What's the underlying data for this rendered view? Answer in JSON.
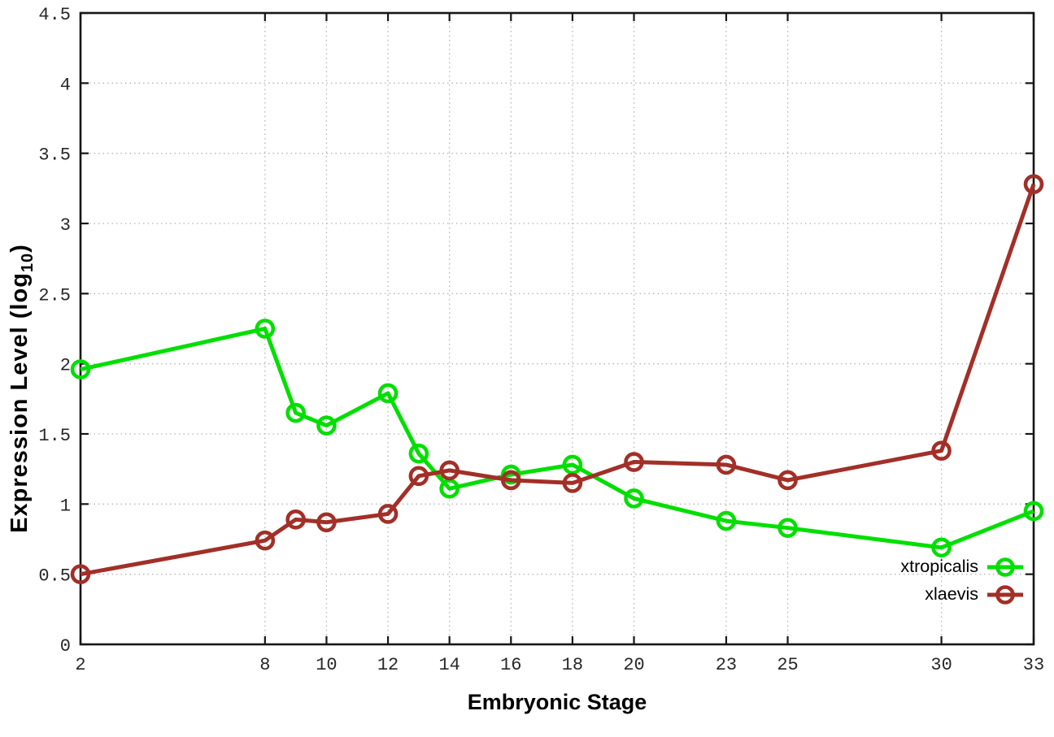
{
  "chart_data": {
    "type": "line",
    "title": "",
    "xlabel": "Embryonic Stage",
    "ylabel": "Expression Level (log10)",
    "ylabel_main": "Expression Level (log",
    "ylabel_sub": "10",
    "ylabel_close": ")",
    "x": [
      2,
      8,
      9,
      10,
      12,
      13,
      14,
      16,
      18,
      20,
      23,
      25,
      30,
      33
    ],
    "xlim": [
      2,
      33
    ],
    "ylim": [
      0,
      4.5
    ],
    "xticks": [
      2,
      8,
      10,
      12,
      14,
      16,
      18,
      20,
      23,
      25,
      30,
      33
    ],
    "yticks": [
      0,
      0.5,
      1,
      1.5,
      2,
      2.5,
      3,
      3.5,
      4,
      4.5
    ],
    "grid": true,
    "legend_position": "inside-bottom-right",
    "marker": "open-circle",
    "frame_color": "#161616",
    "grid_color": "#b5b5b5",
    "tick_label_color": "#282828",
    "series": [
      {
        "name": "xtropicalis",
        "color": "#00df00",
        "values": [
          1.96,
          2.25,
          1.65,
          1.56,
          1.79,
          1.36,
          1.11,
          1.21,
          1.28,
          1.04,
          0.88,
          0.83,
          0.69,
          0.95
        ]
      },
      {
        "name": "xlaevis",
        "color": "#a22f28",
        "values": [
          0.5,
          0.74,
          0.89,
          0.87,
          0.93,
          1.2,
          1.24,
          1.17,
          1.15,
          1.3,
          1.28,
          1.17,
          1.38,
          3.28
        ]
      }
    ]
  }
}
